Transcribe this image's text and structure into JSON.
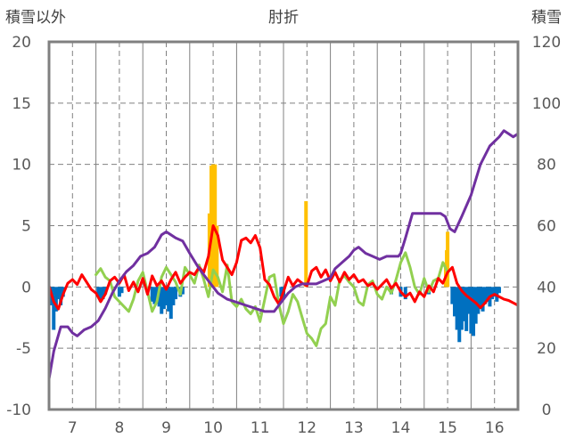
{
  "chart_data": {
    "type": "line",
    "title": "肘折",
    "ylabel_left": "積雪以外",
    "ylabel_right": "積雪",
    "x_ticks": [
      "7",
      "8",
      "9",
      "10",
      "11",
      "12",
      "13",
      "14",
      "15",
      "16"
    ],
    "x_range": [
      6.5,
      16.5
    ],
    "y_left_ticks": [
      "20",
      "15",
      "10",
      "5",
      "0",
      "-5",
      "-10"
    ],
    "y_left_range": [
      -10,
      20
    ],
    "y_right_ticks": [
      "120",
      "100",
      "80",
      "60",
      "40",
      "20",
      "0"
    ],
    "y_right_range": [
      0,
      120
    ],
    "grid": true,
    "colors": {
      "purple": "#7030A0",
      "red": "#FF0000",
      "green": "#92D050",
      "orange_bars": "#FFC000",
      "blue_bars": "#0070C0",
      "grid": "#808080",
      "frame": "#808080"
    },
    "series": [
      {
        "axis": "right",
        "color": "#7030A0",
        "x": [
          6.5,
          6.6,
          6.75,
          6.9,
          7.0,
          7.1,
          7.25,
          7.4,
          7.55,
          7.7,
          7.85,
          8.0,
          8.15,
          8.3,
          8.45,
          8.6,
          8.75,
          8.9,
          9.0,
          9.1,
          9.2,
          9.35,
          9.5,
          9.7,
          9.9,
          10.1,
          10.3,
          10.5,
          10.7,
          10.9,
          11.1,
          11.3,
          11.45,
          11.6,
          11.75,
          11.9,
          12.05,
          12.2,
          12.35,
          12.5,
          12.6,
          12.75,
          12.9,
          13.0,
          13.1,
          13.25,
          13.4,
          13.55,
          13.7,
          13.85,
          13.95,
          14.0,
          14.1,
          14.25,
          14.4,
          14.55,
          14.7,
          14.85,
          14.95,
          15.05,
          15.15,
          15.3,
          15.5,
          15.7,
          15.9,
          16.1,
          16.2,
          16.3,
          16.4,
          16.5
        ],
        "values": [
          10,
          19,
          27,
          27,
          25,
          24,
          26,
          27,
          29,
          33,
          38,
          42,
          45,
          47,
          50,
          51,
          53,
          57,
          58,
          57,
          56,
          55,
          51,
          46,
          42,
          38,
          36,
          35,
          34,
          33,
          32,
          32,
          35,
          38,
          40,
          41,
          41,
          41,
          42,
          43,
          46,
          48,
          50,
          52,
          53,
          51,
          50,
          49,
          50,
          50,
          50,
          51,
          56,
          64,
          64,
          64,
          64,
          64,
          63,
          59,
          58,
          63,
          70,
          80,
          86,
          89,
          91,
          90,
          89,
          90
        ]
      },
      {
        "axis": "left",
        "color": "#FF0000",
        "x": [
          6.5,
          6.6,
          6.7,
          6.8,
          6.9,
          7.0,
          7.1,
          7.2,
          7.3,
          7.4,
          7.5,
          7.6,
          7.7,
          7.8,
          7.9,
          8.0,
          8.1,
          8.2,
          8.3,
          8.4,
          8.5,
          8.6,
          8.7,
          8.8,
          8.9,
          9.0,
          9.1,
          9.2,
          9.3,
          9.4,
          9.5,
          9.6,
          9.7,
          9.8,
          9.9,
          10.0,
          10.1,
          10.2,
          10.3,
          10.4,
          10.5,
          10.6,
          10.7,
          10.8,
          10.9,
          11.0,
          11.1,
          11.2,
          11.3,
          11.4,
          11.5,
          11.6,
          11.7,
          11.8,
          11.9,
          12.0,
          12.1,
          12.2,
          12.3,
          12.4,
          12.5,
          12.6,
          12.7,
          12.8,
          12.9,
          13.0,
          13.1,
          13.2,
          13.3,
          13.4,
          13.5,
          13.6,
          13.7,
          13.8,
          13.9,
          14.0,
          14.1,
          14.2,
          14.3,
          14.4,
          14.5,
          14.6,
          14.7,
          14.8,
          14.9,
          15.0,
          15.1,
          15.2,
          15.3,
          15.4,
          15.5,
          15.6,
          15.7,
          15.8,
          15.9,
          16.0,
          16.1,
          16.2,
          16.3,
          16.4,
          16.5
        ],
        "values": [
          0.1,
          -1.2,
          -1.8,
          -0.6,
          0.3,
          0.6,
          0.2,
          1.0,
          0.4,
          -0.2,
          -0.5,
          -1.2,
          -0.6,
          0.5,
          0.8,
          0.3,
          1.0,
          -0.3,
          0.4,
          -0.4,
          0.7,
          -0.6,
          0.9,
          0.1,
          0.5,
          -0.2,
          0.6,
          1.2,
          0.3,
          0.8,
          1.2,
          1.0,
          1.6,
          1.2,
          2.5,
          5.0,
          4.2,
          2.2,
          1.6,
          1.0,
          2.0,
          3.8,
          4.0,
          3.6,
          4.2,
          3.2,
          0.6,
          0.2,
          -0.8,
          -1.4,
          -0.4,
          0.8,
          0.1,
          0.6,
          0.3,
          0.1,
          1.3,
          1.6,
          0.8,
          1.4,
          0.5,
          1.2,
          0.4,
          1.2,
          0.6,
          1.0,
          0.4,
          0.6,
          0.1,
          0.3,
          -0.2,
          0.2,
          0.6,
          -0.1,
          0.3,
          -0.4,
          -0.8,
          -0.5,
          -1.2,
          -0.4,
          -0.8,
          0.1,
          -0.4,
          0.7,
          0.3,
          1.2,
          1.6,
          0.3,
          -0.3,
          -0.7,
          -1.0,
          -1.3,
          -1.7,
          -1.3,
          -0.8,
          -0.6,
          -0.8,
          -1.0,
          -1.1,
          -1.3,
          -1.5
        ]
      },
      {
        "axis": "left",
        "color": "#92D050",
        "x": [
          7.5,
          7.6,
          7.7,
          7.8,
          7.9,
          8.0,
          8.1,
          8.2,
          8.3,
          8.4,
          8.5,
          8.6,
          8.7,
          8.8,
          8.9,
          9.0,
          9.1,
          9.2,
          9.3,
          9.4,
          9.5,
          9.6,
          9.7,
          9.8,
          9.9,
          10.0,
          10.1,
          10.2,
          10.3,
          10.4,
          10.5,
          10.6,
          10.7,
          10.8,
          10.9,
          11.0,
          11.1,
          11.2,
          11.3,
          11.4,
          11.5,
          11.6,
          11.7,
          11.8,
          11.9,
          12.0,
          12.1,
          12.2,
          12.3,
          12.4,
          12.5,
          12.6,
          12.7,
          12.8,
          12.9,
          13.0,
          13.1,
          13.2,
          13.3,
          13.4,
          13.5,
          13.6,
          13.7,
          13.8,
          13.9,
          14.0,
          14.1,
          14.2,
          14.3,
          14.4,
          14.5,
          14.6,
          14.7,
          14.8,
          14.9,
          15.0
        ],
        "values": [
          1.0,
          1.5,
          0.8,
          0.5,
          -0.8,
          -1.2,
          -1.6,
          -2.0,
          -1.0,
          0.5,
          1.2,
          -0.4,
          -2.0,
          -1.2,
          0.8,
          1.6,
          1.0,
          0.4,
          -0.6,
          1.6,
          1.0,
          0.3,
          1.8,
          0.6,
          -0.8,
          1.4,
          0.8,
          -0.4,
          1.8,
          -1.2,
          -1.6,
          -1.0,
          -1.8,
          -2.2,
          -1.6,
          -2.8,
          -1.0,
          0.8,
          1.0,
          -1.4,
          -3.0,
          -2.0,
          -0.6,
          -1.2,
          -2.5,
          -3.8,
          -4.2,
          -4.8,
          -3.4,
          -3.0,
          -0.8,
          -1.5,
          0.6,
          0.9,
          0.4,
          0.0,
          -1.2,
          -1.5,
          0.2,
          0.5,
          -0.6,
          -1.0,
          0.0,
          -0.5,
          0.6,
          2.0,
          2.8,
          1.6,
          0.0,
          -0.6,
          0.7,
          -0.4,
          0.5,
          0.7,
          2.0,
          1.2
        ]
      }
    ],
    "bars": [
      {
        "axis": "left",
        "color": "#FFC000",
        "x": [
          9.92,
          9.96,
          10.0,
          10.04,
          10.08,
          11.98,
          14.96,
          14.98,
          15.0
        ],
        "values": [
          6.0,
          9.9,
          10.0,
          10.0,
          5.0,
          7.0,
          2.0,
          3.0,
          4.5
        ]
      },
      {
        "axis": "left",
        "color": "#0070C0",
        "x": [
          6.55,
          6.6,
          6.65,
          6.7,
          6.75,
          6.8,
          7.55,
          7.6,
          7.65,
          7.7,
          8.0,
          8.05,
          8.7,
          8.75,
          8.8,
          8.85,
          8.9,
          8.95,
          9.0,
          9.05,
          9.1,
          9.15,
          9.2,
          9.3,
          9.35,
          11.45,
          11.5,
          13.8,
          14.0,
          14.1,
          14.6,
          15.1,
          15.15,
          15.2,
          15.25,
          15.3,
          15.35,
          15.4,
          15.45,
          15.5,
          15.55,
          15.6,
          15.65,
          15.7,
          15.75,
          15.8,
          15.85,
          15.9,
          15.95,
          16.0,
          16.05,
          16.1
        ],
        "values": [
          -1.5,
          -3.5,
          -2.0,
          -1.0,
          -1.5,
          -0.8,
          -0.8,
          -1.2,
          -1.0,
          -0.6,
          -0.8,
          -0.5,
          -1.2,
          -1.4,
          -1.0,
          -1.6,
          -2.2,
          -1.8,
          -1.5,
          -2.0,
          -2.6,
          -1.5,
          -1.0,
          -0.8,
          -0.6,
          -0.8,
          -1.0,
          -0.6,
          -0.8,
          -1.0,
          -0.6,
          -1.4,
          -2.4,
          -3.5,
          -4.5,
          -3.5,
          -2.8,
          -3.6,
          -2.2,
          -3.8,
          -4.0,
          -3.0,
          -2.2,
          -1.8,
          -2.0,
          -1.4,
          -1.2,
          -1.6,
          -1.0,
          -0.8,
          -1.2,
          -0.5
        ]
      }
    ]
  }
}
